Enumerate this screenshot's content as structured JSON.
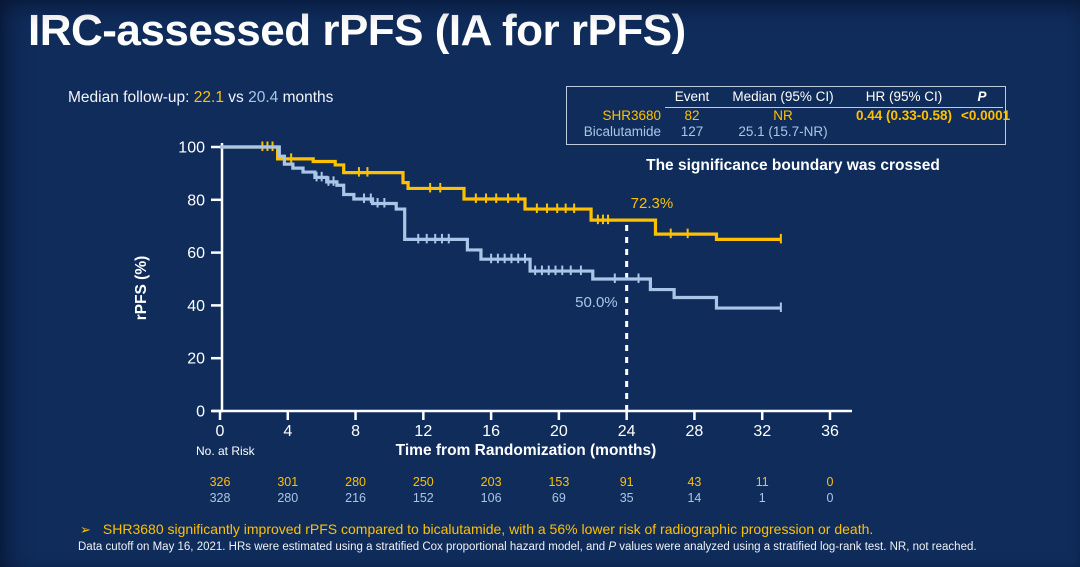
{
  "title": "IRC-assessed rPFS (IA for rPFS)",
  "followup": {
    "label": "Median follow-up: ",
    "value_shr": "22.1",
    "vs": " vs ",
    "value_bic": "20.4",
    "suffix": " months"
  },
  "stats_table": {
    "headers": {
      "name": "",
      "event": "Event",
      "median": "Median (95% CI)",
      "hr": "HR (95% CI)",
      "p": "P"
    },
    "rows": [
      {
        "name": "SHR3680",
        "event": "82",
        "median": "NR",
        "hr": "0.44 (0.33-0.58)",
        "p": "<0.0001"
      },
      {
        "name": "Bicalutamide",
        "event": "127",
        "median": "25.1 (15.7-NR)",
        "hr": "",
        "p": ""
      }
    ]
  },
  "significance_note": "The significance boundary was crossed",
  "bullet": {
    "glyph": "➢",
    "text": "SHR3680 significantly improved rPFS compared to bicalutamide, with a 56% lower risk of radiographic progression or death."
  },
  "footnote": {
    "pre": "Data cutoff on May 16, 2021. HRs were estimated using a stratified Cox proportional hazard model, and ",
    "italic": "P",
    "post": " values were analyzed using a stratified log-rank test. NR, not reached."
  },
  "colors": {
    "background": "#0F2C5B",
    "gold": "#FFC000",
    "light_blue": "#A9C6E8",
    "axis": "#FFFFFF"
  },
  "chart_data": {
    "type": "line",
    "subtype": "kaplan-meier-step",
    "title": "",
    "xlabel": "Time from Randomization (months)",
    "ylabel": "rPFS (%)",
    "xlim": [
      0,
      36
    ],
    "ylim": [
      0,
      100
    ],
    "xticks": [
      0,
      4,
      8,
      12,
      16,
      20,
      24,
      28,
      32,
      36
    ],
    "yticks": [
      0,
      20,
      40,
      60,
      80,
      100
    ],
    "grid": false,
    "landmark_line_x": 24,
    "series": [
      {
        "name": "SHR3680",
        "color": "#FFC000",
        "landmark_label": "72.3%",
        "steps": [
          [
            0,
            100
          ],
          [
            3.3,
            100
          ],
          [
            3.4,
            95.5
          ],
          [
            5.5,
            94.5
          ],
          [
            6.8,
            93.2
          ],
          [
            7.3,
            90.3
          ],
          [
            10.8,
            86.5
          ],
          [
            11.1,
            84.3
          ],
          [
            14.4,
            80.3
          ],
          [
            18.0,
            76.5
          ],
          [
            21.9,
            72.3
          ],
          [
            25.7,
            67.0
          ],
          [
            29.3,
            65.0
          ],
          [
            33.1,
            65.0
          ]
        ],
        "censor_ticks": [
          2.5,
          2.8,
          3.1,
          4.2,
          8.2,
          8.7,
          12.4,
          13.0,
          15.1,
          15.7,
          16.3,
          17.0,
          17.6,
          18.7,
          19.3,
          19.9,
          20.4,
          20.9,
          22.3,
          22.6,
          22.9,
          26.6,
          27.6,
          33.1
        ]
      },
      {
        "name": "Bicalutamide",
        "color": "#A9C6E8",
        "landmark_label": "50.0%",
        "steps": [
          [
            0,
            100
          ],
          [
            3.4,
            100
          ],
          [
            3.5,
            96.5
          ],
          [
            3.8,
            93.5
          ],
          [
            4.3,
            92.0
          ],
          [
            4.9,
            90.5
          ],
          [
            5.6,
            88.5
          ],
          [
            6.3,
            86.8
          ],
          [
            6.9,
            85.5
          ],
          [
            7.3,
            82.0
          ],
          [
            7.9,
            80.3
          ],
          [
            9.0,
            78.6
          ],
          [
            10.4,
            76.5
          ],
          [
            10.9,
            65.0
          ],
          [
            14.6,
            61.0
          ],
          [
            15.4,
            57.5
          ],
          [
            18.3,
            53.0
          ],
          [
            22.0,
            50.0
          ],
          [
            25.4,
            46.0
          ],
          [
            26.8,
            43.0
          ],
          [
            29.3,
            39.0
          ],
          [
            33.1,
            39.0
          ]
        ],
        "censor_ticks": [
          5.7,
          6.0,
          6.4,
          6.7,
          8.5,
          8.9,
          9.3,
          9.7,
          11.7,
          12.2,
          12.7,
          13.1,
          13.5,
          16.0,
          16.4,
          16.8,
          17.2,
          17.6,
          18.0,
          18.6,
          19.0,
          19.4,
          19.8,
          20.2,
          20.7,
          21.3,
          23.3,
          24.7,
          33.1
        ]
      }
    ],
    "no_at_risk": {
      "label": "No. at Risk",
      "rows": [
        {
          "name": "SHR3680",
          "color": "#FFC000",
          "values": [
            326,
            301,
            280,
            250,
            203,
            153,
            91,
            43,
            11,
            0
          ]
        },
        {
          "name": "Bicalutamide",
          "color": "#A9C6E8",
          "values": [
            328,
            280,
            216,
            152,
            106,
            69,
            35,
            14,
            1,
            0
          ]
        }
      ]
    }
  }
}
